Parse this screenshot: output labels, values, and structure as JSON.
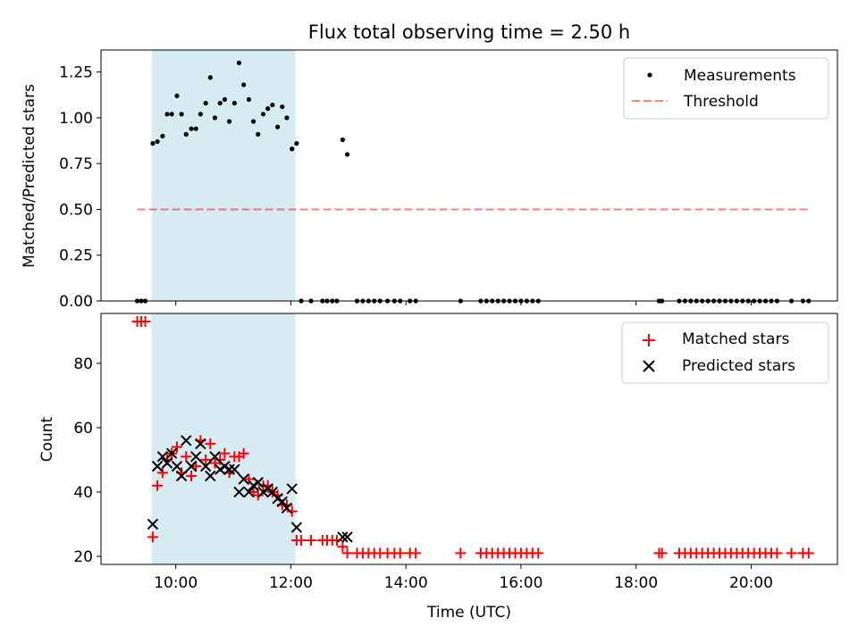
{
  "title": "Flux total observing time = 2.50 h",
  "colors": {
    "span": "#add8e6",
    "threshold": "#ff0000",
    "matched": "#ff0000",
    "predicted": "#000000",
    "measure": "#000000"
  },
  "chart_data": [
    {
      "type": "scatter",
      "title": "Flux total observing time = 2.50 h",
      "xlabel": "",
      "ylabel": "Matched/Predicted stars",
      "xlim": [
        8.7,
        21.5
      ],
      "ylim": [
        0,
        1.37
      ],
      "yticks": [
        "0.00",
        "0.25",
        "0.50",
        "0.75",
        "1.00",
        "1.25"
      ],
      "ytick_values": [
        0,
        0.25,
        0.5,
        0.75,
        1.0,
        1.25
      ],
      "shaded_span": [
        9.58,
        12.08
      ],
      "legend": {
        "position": "top-right",
        "entries": [
          "Measurements",
          "Threshold"
        ]
      },
      "threshold": {
        "name": "Threshold",
        "y": 0.5,
        "x_range": [
          9.33,
          21.0
        ]
      },
      "series": [
        {
          "name": "Measurements",
          "points": [
            [
              9.33,
              0
            ],
            [
              9.4,
              0
            ],
            [
              9.47,
              0
            ],
            [
              9.6,
              0.86
            ],
            [
              9.68,
              0.87
            ],
            [
              9.77,
              0.9
            ],
            [
              9.85,
              1.02
            ],
            [
              9.93,
              1.02
            ],
            [
              10.02,
              1.12
            ],
            [
              10.1,
              1.02
            ],
            [
              10.18,
              0.91
            ],
            [
              10.27,
              0.94
            ],
            [
              10.35,
              0.94
            ],
            [
              10.43,
              1.02
            ],
            [
              10.52,
              1.08
            ],
            [
              10.6,
              1.22
            ],
            [
              10.68,
              1.0
            ],
            [
              10.77,
              1.08
            ],
            [
              10.85,
              1.1
            ],
            [
              10.93,
              0.98
            ],
            [
              11.02,
              1.08
            ],
            [
              11.1,
              1.3
            ],
            [
              11.18,
              1.18
            ],
            [
              11.27,
              1.1
            ],
            [
              11.35,
              0.98
            ],
            [
              11.43,
              0.91
            ],
            [
              11.52,
              1.02
            ],
            [
              11.6,
              1.05
            ],
            [
              11.68,
              1.07
            ],
            [
              11.77,
              0.95
            ],
            [
              11.85,
              1.06
            ],
            [
              11.93,
              1.0
            ],
            [
              12.02,
              0.83
            ],
            [
              12.1,
              0.86
            ],
            [
              12.18,
              0
            ],
            [
              12.35,
              0
            ],
            [
              12.55,
              0
            ],
            [
              12.63,
              0
            ],
            [
              12.72,
              0
            ],
            [
              12.8,
              0
            ],
            [
              12.9,
              0.88
            ],
            [
              12.98,
              0.8
            ],
            [
              13.15,
              0
            ],
            [
              13.25,
              0
            ],
            [
              13.35,
              0
            ],
            [
              13.45,
              0
            ],
            [
              13.55,
              0
            ],
            [
              13.68,
              0
            ],
            [
              13.8,
              0
            ],
            [
              13.9,
              0
            ],
            [
              14.07,
              0
            ],
            [
              14.17,
              0
            ],
            [
              14.95,
              0
            ],
            [
              15.3,
              0
            ],
            [
              15.4,
              0
            ],
            [
              15.5,
              0
            ],
            [
              15.6,
              0
            ],
            [
              15.7,
              0
            ],
            [
              15.8,
              0
            ],
            [
              15.9,
              0
            ],
            [
              16.0,
              0
            ],
            [
              16.1,
              0
            ],
            [
              16.2,
              0
            ],
            [
              16.3,
              0
            ],
            [
              18.4,
              0
            ],
            [
              18.45,
              0
            ],
            [
              18.75,
              0
            ],
            [
              18.85,
              0
            ],
            [
              18.95,
              0
            ],
            [
              19.05,
              0
            ],
            [
              19.15,
              0
            ],
            [
              19.25,
              0
            ],
            [
              19.35,
              0
            ],
            [
              19.45,
              0
            ],
            [
              19.55,
              0
            ],
            [
              19.65,
              0
            ],
            [
              19.75,
              0
            ],
            [
              19.85,
              0
            ],
            [
              19.95,
              0
            ],
            [
              20.05,
              0
            ],
            [
              20.15,
              0
            ],
            [
              20.25,
              0
            ],
            [
              20.35,
              0
            ],
            [
              20.45,
              0
            ],
            [
              20.7,
              0
            ],
            [
              20.9,
              0
            ],
            [
              21.0,
              0
            ]
          ]
        }
      ]
    },
    {
      "type": "scatter",
      "title": "",
      "xlabel": "Time (UTC)",
      "ylabel": "Count",
      "xlim": [
        8.7,
        21.5
      ],
      "ylim": [
        17.5,
        95.5
      ],
      "yticks": [
        "20",
        "40",
        "60",
        "80"
      ],
      "ytick_values": [
        20,
        40,
        60,
        80
      ],
      "xticks": [
        "10:00",
        "12:00",
        "14:00",
        "16:00",
        "18:00",
        "20:00"
      ],
      "xtick_values": [
        10,
        12,
        14,
        16,
        18,
        20
      ],
      "shaded_span": [
        9.58,
        12.08
      ],
      "legend": {
        "position": "top-right",
        "entries": [
          "Matched stars",
          "Predicted stars"
        ]
      },
      "series": [
        {
          "name": "Matched stars",
          "marker": "+",
          "points": [
            [
              9.33,
              93
            ],
            [
              9.4,
              93
            ],
            [
              9.47,
              93
            ],
            [
              9.6,
              26
            ],
            [
              9.68,
              42
            ],
            [
              9.77,
              46
            ],
            [
              9.85,
              50
            ],
            [
              9.93,
              52
            ],
            [
              10.02,
              54
            ],
            [
              10.1,
              46
            ],
            [
              10.18,
              51
            ],
            [
              10.27,
              45
            ],
            [
              10.35,
              48
            ],
            [
              10.43,
              56
            ],
            [
              10.52,
              50
            ],
            [
              10.6,
              55
            ],
            [
              10.68,
              49
            ],
            [
              10.77,
              50
            ],
            [
              10.85,
              52
            ],
            [
              10.93,
              46
            ],
            [
              11.02,
              51
            ],
            [
              11.1,
              51
            ],
            [
              11.18,
              52
            ],
            [
              11.27,
              44
            ],
            [
              11.35,
              40
            ],
            [
              11.43,
              39
            ],
            [
              11.52,
              42
            ],
            [
              11.6,
              42
            ],
            [
              11.68,
              40
            ],
            [
              11.77,
              39
            ],
            [
              11.85,
              36
            ],
            [
              11.93,
              36
            ],
            [
              12.02,
              34
            ],
            [
              12.1,
              25
            ],
            [
              12.18,
              25
            ],
            [
              12.35,
              25
            ],
            [
              12.55,
              25
            ],
            [
              12.63,
              25
            ],
            [
              12.72,
              25
            ],
            [
              12.8,
              25
            ],
            [
              12.9,
              23
            ],
            [
              12.98,
              21
            ],
            [
              13.15,
              21
            ],
            [
              13.25,
              21
            ],
            [
              13.35,
              21
            ],
            [
              13.45,
              21
            ],
            [
              13.55,
              21
            ],
            [
              13.68,
              21
            ],
            [
              13.8,
              21
            ],
            [
              13.9,
              21
            ],
            [
              14.07,
              21
            ],
            [
              14.17,
              21
            ],
            [
              14.95,
              21
            ],
            [
              15.3,
              21
            ],
            [
              15.4,
              21
            ],
            [
              15.5,
              21
            ],
            [
              15.6,
              21
            ],
            [
              15.7,
              21
            ],
            [
              15.8,
              21
            ],
            [
              15.9,
              21
            ],
            [
              16.0,
              21
            ],
            [
              16.1,
              21
            ],
            [
              16.2,
              21
            ],
            [
              16.3,
              21
            ],
            [
              18.4,
              21
            ],
            [
              18.45,
              21
            ],
            [
              18.75,
              21
            ],
            [
              18.85,
              21
            ],
            [
              18.95,
              21
            ],
            [
              19.05,
              21
            ],
            [
              19.15,
              21
            ],
            [
              19.25,
              21
            ],
            [
              19.35,
              21
            ],
            [
              19.45,
              21
            ],
            [
              19.55,
              21
            ],
            [
              19.65,
              21
            ],
            [
              19.75,
              21
            ],
            [
              19.85,
              21
            ],
            [
              19.95,
              21
            ],
            [
              20.05,
              21
            ],
            [
              20.15,
              21
            ],
            [
              20.25,
              21
            ],
            [
              20.35,
              21
            ],
            [
              20.45,
              21
            ],
            [
              20.7,
              21
            ],
            [
              20.9,
              21
            ],
            [
              21.0,
              21
            ]
          ]
        },
        {
          "name": "Predicted stars",
          "marker": "x",
          "points": [
            [
              9.6,
              30
            ],
            [
              9.68,
              48
            ],
            [
              9.77,
              51
            ],
            [
              9.85,
              49
            ],
            [
              9.93,
              52
            ],
            [
              10.02,
              48
            ],
            [
              10.1,
              45
            ],
            [
              10.18,
              56
            ],
            [
              10.27,
              48
            ],
            [
              10.35,
              51
            ],
            [
              10.43,
              55
            ],
            [
              10.52,
              48
            ],
            [
              10.6,
              45
            ],
            [
              10.68,
              51
            ],
            [
              10.77,
              47
            ],
            [
              10.85,
              48
            ],
            [
              10.93,
              47
            ],
            [
              11.02,
              47
            ],
            [
              11.1,
              40
            ],
            [
              11.18,
              44
            ],
            [
              11.27,
              40
            ],
            [
              11.35,
              42
            ],
            [
              11.43,
              43
            ],
            [
              11.52,
              40
            ],
            [
              11.6,
              41
            ],
            [
              11.68,
              40
            ],
            [
              11.77,
              38
            ],
            [
              11.85,
              37
            ],
            [
              11.93,
              35
            ],
            [
              12.02,
              41
            ],
            [
              12.1,
              29
            ],
            [
              12.9,
              26
            ],
            [
              12.98,
              26
            ]
          ]
        }
      ]
    }
  ]
}
